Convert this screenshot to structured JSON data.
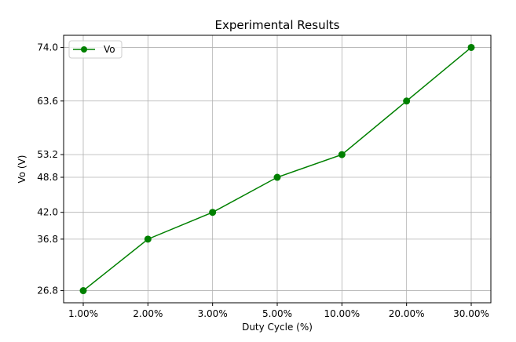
{
  "chart_data": {
    "type": "line",
    "title": "Experimental Results",
    "xlabel": "Duty Cycle (%)",
    "ylabel": "Vo (V)",
    "categories": [
      "1.00%",
      "2.00%",
      "3.00%",
      "5.00%",
      "10.00%",
      "20.00%",
      "30.00%"
    ],
    "series": [
      {
        "name": "Vo",
        "values": [
          26.8,
          36.8,
          42.0,
          48.8,
          53.2,
          63.6,
          74.0
        ],
        "color": "#008000",
        "marker": "circle"
      }
    ],
    "yticks": [
      26.8,
      36.8,
      42.0,
      48.8,
      53.2,
      63.6,
      74.0
    ],
    "ytick_labels": [
      "26.8",
      "36.8",
      "42.0",
      "48.8",
      "53.2",
      "63.6",
      "74.0"
    ],
    "ylim": [
      24.45,
      76.35
    ],
    "grid": true,
    "legend_position": "top-left"
  }
}
